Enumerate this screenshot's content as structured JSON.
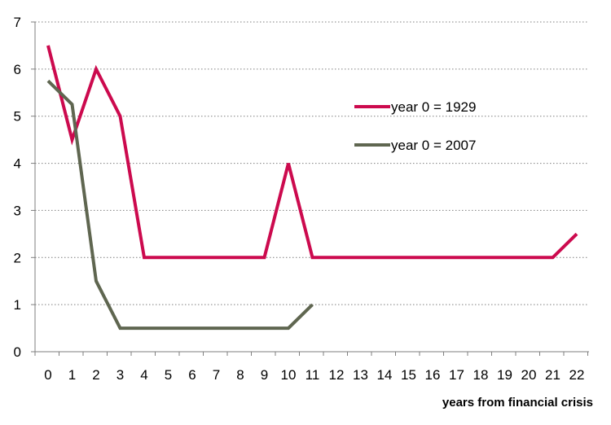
{
  "chart_data": {
    "type": "line",
    "title": "",
    "xlabel": "years from financial crisis",
    "ylabel": "",
    "x": [
      0,
      1,
      2,
      3,
      4,
      5,
      6,
      7,
      8,
      9,
      10,
      11,
      12,
      13,
      14,
      15,
      16,
      17,
      18,
      19,
      20,
      21,
      22
    ],
    "xlim": [
      0,
      22
    ],
    "ylim": [
      0,
      7
    ],
    "yticks": [
      0,
      1,
      2,
      3,
      4,
      5,
      6,
      7
    ],
    "grid": "horizontal dotted",
    "legend": "right-upper",
    "series": [
      {
        "name": "year 0 = 1929",
        "color": "#CC0A4E",
        "x": [
          0,
          1,
          2,
          3,
          4,
          5,
          6,
          7,
          8,
          9,
          10,
          11,
          12,
          13,
          14,
          15,
          16,
          17,
          18,
          19,
          20,
          21,
          22
        ],
        "values": [
          6.5,
          4.5,
          6,
          5,
          2,
          2,
          2,
          2,
          2,
          2,
          4,
          2,
          2,
          2,
          2,
          2,
          2,
          2,
          2,
          2,
          2,
          2,
          2.5
        ]
      },
      {
        "name": "year 0 = 2007",
        "color": "#5F6650",
        "x": [
          0,
          1,
          2,
          3,
          4,
          5,
          6,
          7,
          8,
          9,
          10,
          11
        ],
        "values": [
          5.75,
          5.25,
          1.5,
          0.5,
          0.5,
          0.5,
          0.5,
          0.5,
          0.5,
          0.5,
          0.5,
          1
        ]
      }
    ]
  }
}
